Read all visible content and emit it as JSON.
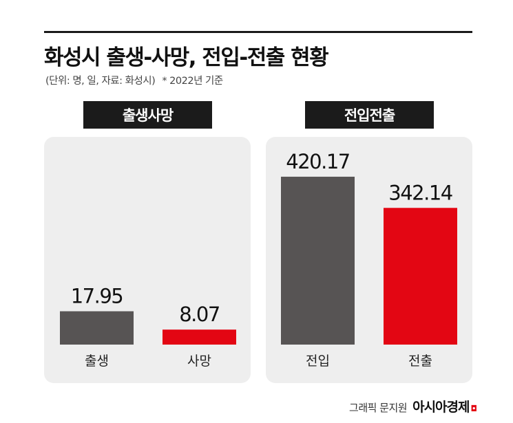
{
  "title": "화성시 출생-사망, 전입-전출 현황",
  "subtitle": "(단위: 명, 일, 자료: 화성시)",
  "note": "* 2022년 기준",
  "credit": {
    "text": "그래픽 문지원",
    "logo": "아시아경제"
  },
  "colors": {
    "gray": "#575454",
    "red": "#e30613"
  },
  "chart_data": [
    {
      "type": "bar",
      "title": "출생사망",
      "categories": [
        "출생",
        "사망"
      ],
      "values": [
        17.95,
        8.07
      ],
      "labels": [
        "17.95",
        "8.07"
      ],
      "colors": [
        "#575454",
        "#e30613"
      ]
    },
    {
      "type": "bar",
      "title": "전입전출",
      "categories": [
        "전입",
        "전출"
      ],
      "values": [
        420.17,
        342.14
      ],
      "labels": [
        "420.17",
        "342.14"
      ],
      "colors": [
        "#575454",
        "#e30613"
      ]
    }
  ]
}
